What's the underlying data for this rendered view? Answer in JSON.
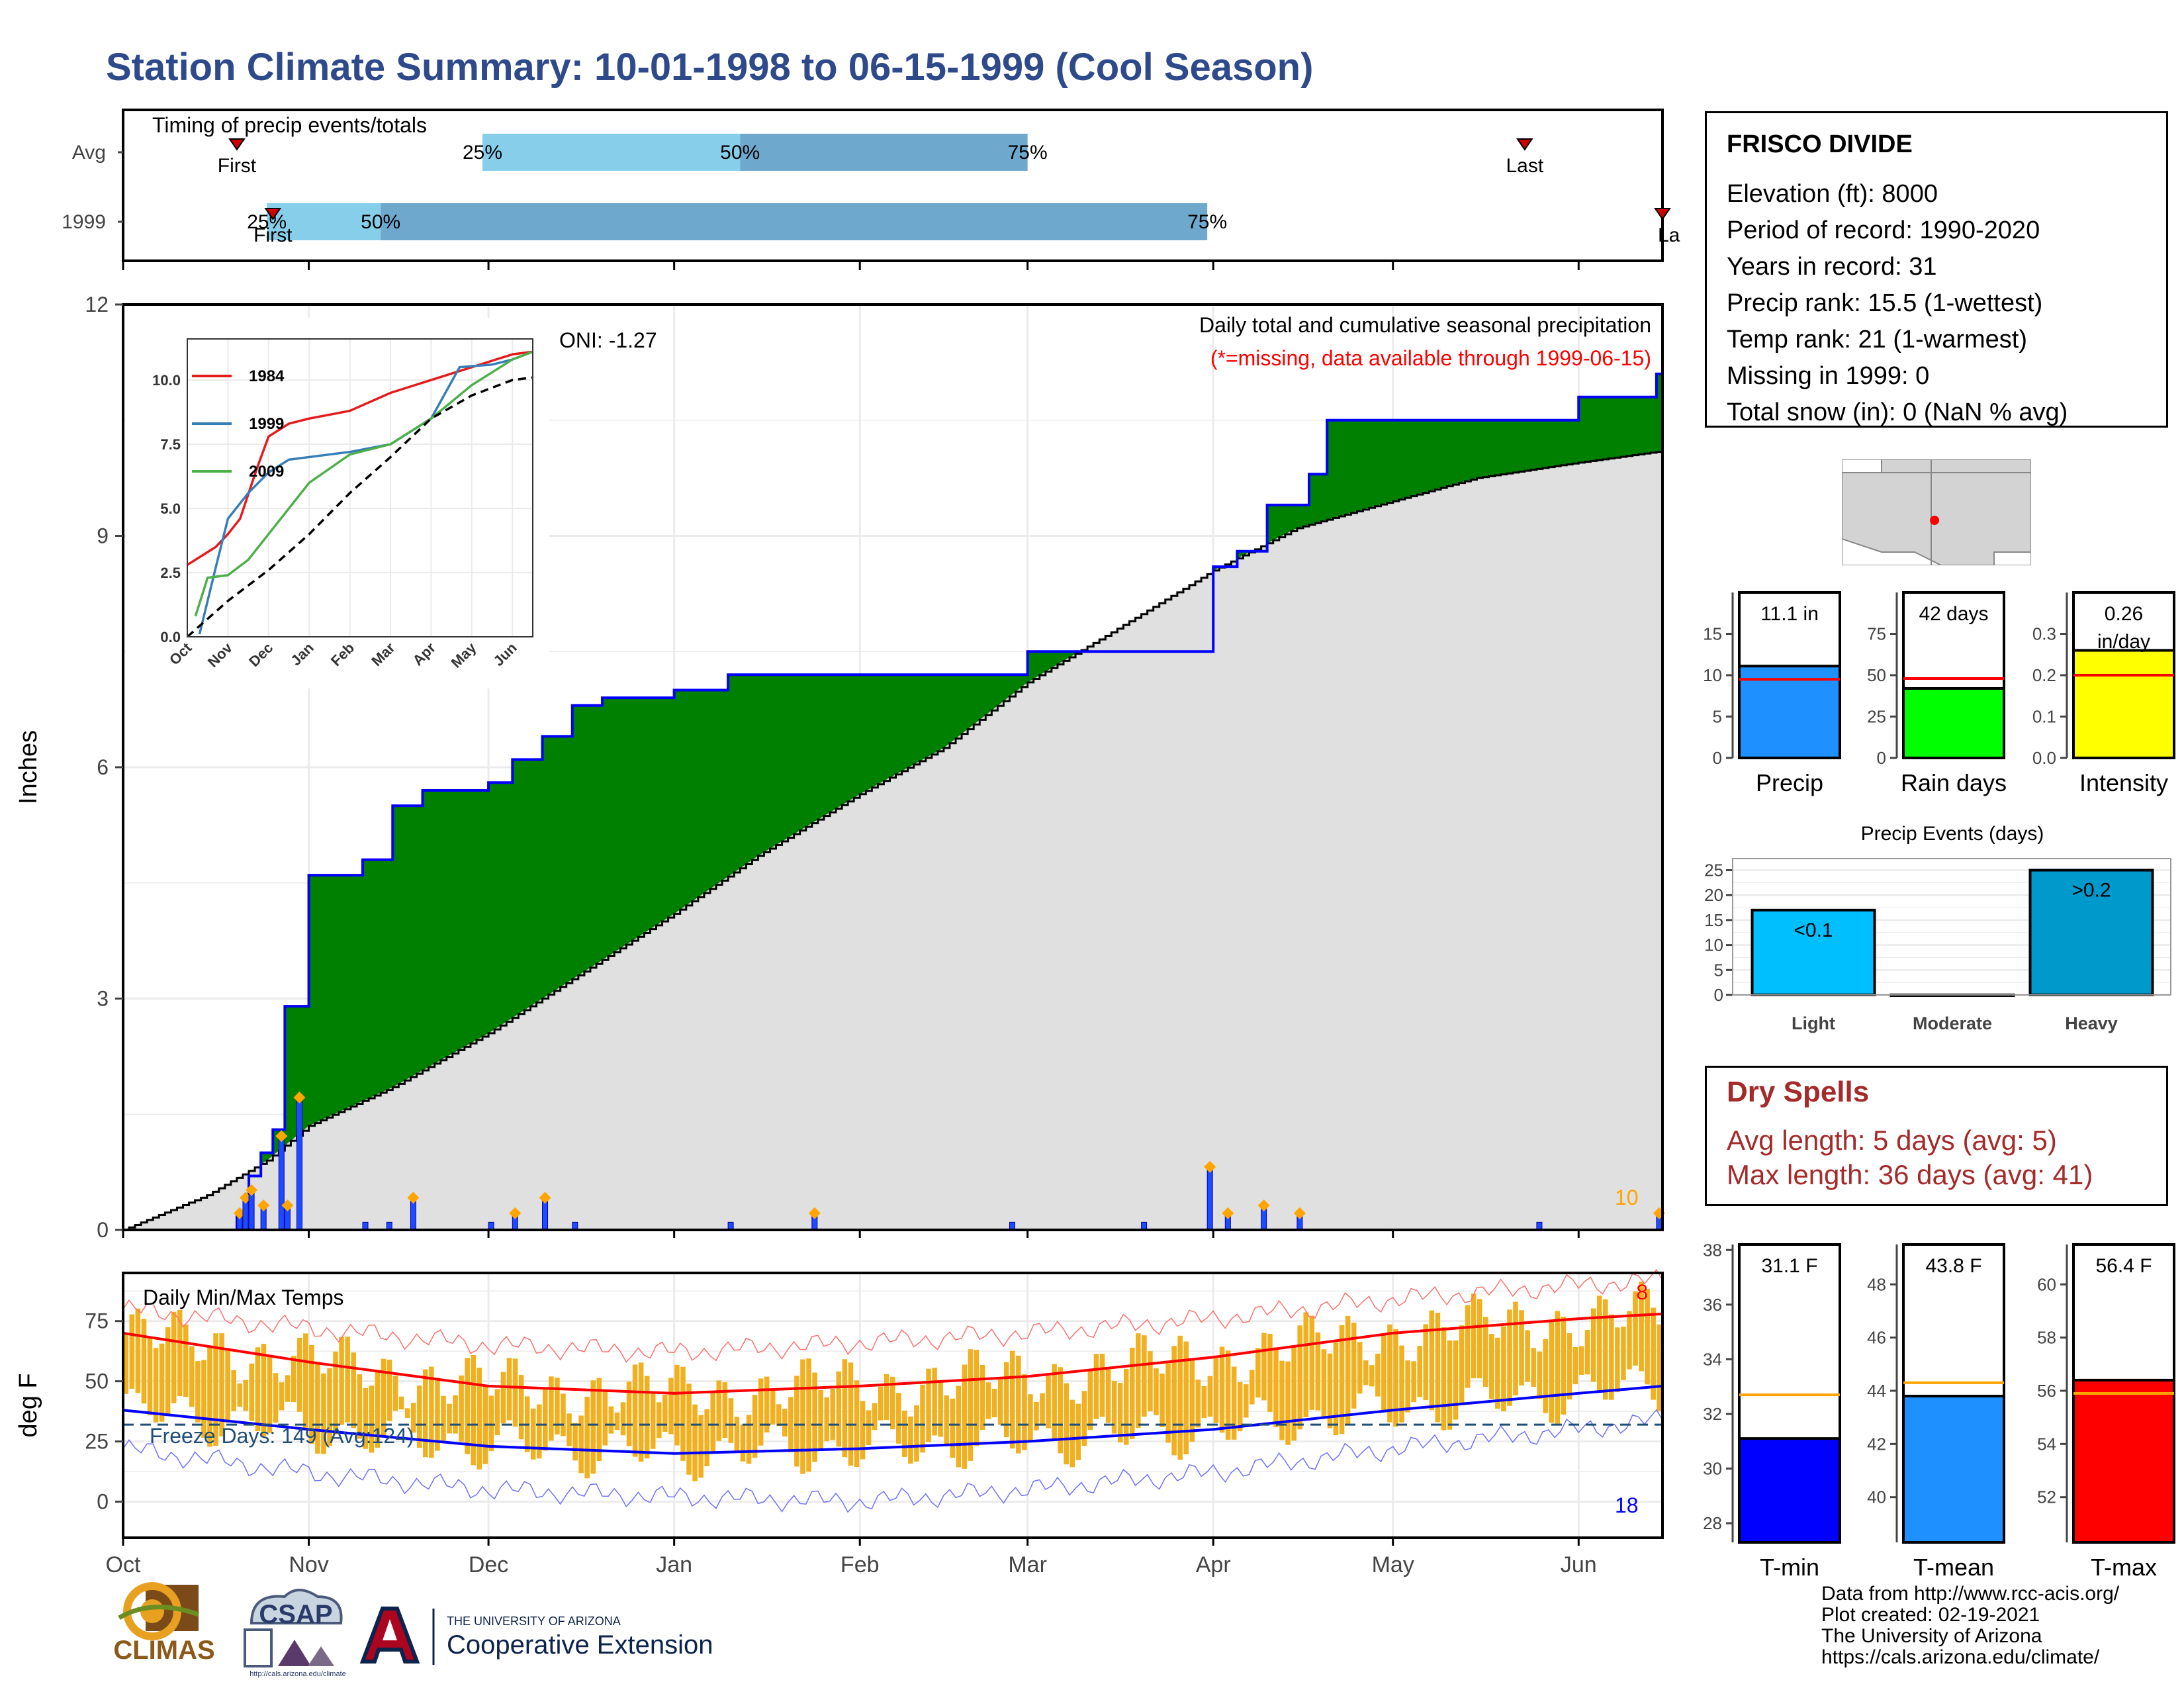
{
  "title": "Station Climate Summary: 10-01-1998 to 06-15-1999 (Cool Season)",
  "station": {
    "name": "FRISCO DIVIDE",
    "lines": [
      "Elevation (ft): 8000",
      "Period of record: 1990-2020",
      "Years in record: 31",
      "Precip rank: 15.5 (1-wettest)",
      "Temp rank: 21 (1-warmest)",
      "Missing in 1999: 0",
      "Total snow (in): 0 (NaN % avg)"
    ]
  },
  "dry_spells": {
    "heading": "Dry Spells",
    "avg": "Avg length: 5 days (avg: 5)",
    "max": "Max length: 36 days (avg: 41)"
  },
  "footer": [
    "Data from http://www.rcc-acis.org/",
    "Plot created: 02-19-2021",
    "The University of Arizona",
    "https://cals.arizona.edu/climate/"
  ],
  "logos": {
    "climas": "CLIMAS",
    "csap": "CSAP",
    "csap_url": "http://cals.arizona.edu/climate",
    "ua_small": "THE UNIVERSITY OF ARIZONA",
    "ua_big": "Cooperative Extension"
  },
  "colors": {
    "title": "#2e4a8b",
    "surplus": "#008000",
    "deficit": "#8B5A00",
    "normal": "#e0e0e0",
    "precip_line": "#0000ff",
    "q1": "#87ceeb",
    "q2": "#6fa8cd",
    "tmax": "#ff0000",
    "tmin": "#0000ff",
    "temp_bar": "#f0b020",
    "dry_spells": "#a52a2a"
  },
  "chart_data": [
    {
      "type": "bar",
      "name": "timing",
      "title": "Timing of precip events/totals",
      "categories": [
        "Avg",
        "1999"
      ],
      "x_axis": "date",
      "rows": [
        {
          "label": "Avg",
          "first": "1998-10-20",
          "last": "1999-05-23",
          "p25": "1998-11-30",
          "p50": "1999-01-12",
          "p75": "1999-03-01",
          "first_label": "First",
          "last_label": "Last"
        },
        {
          "label": "1999",
          "first": "1998-10-26",
          "last": "1999-06-15",
          "p25": "1998-10-25",
          "p50": "1998-11-13",
          "p75": "1999-03-31",
          "first_label": "First",
          "last_label": "La"
        }
      ],
      "pct_labels": [
        "25%",
        "50%",
        "75%"
      ]
    },
    {
      "type": "area",
      "name": "precip",
      "title": "Daily total and cumulative seasonal precipitation",
      "subtitle": "(*=missing, data available through 1999-06-15)",
      "ylabel": "Inches",
      "ylim": [
        0,
        12
      ],
      "yticks": [
        0,
        3,
        6,
        9,
        12
      ],
      "oni": "ONI: -1.27",
      "count_label": "10",
      "normal": [
        [
          "1998-10-01",
          0.0
        ],
        [
          "1998-10-15",
          0.45
        ],
        [
          "1998-10-25",
          0.9
        ],
        [
          "1998-11-01",
          1.35
        ],
        [
          "1998-11-15",
          1.85
        ],
        [
          "1998-12-01",
          2.55
        ],
        [
          "1998-12-15",
          3.25
        ],
        [
          "1999-01-01",
          4.1
        ],
        [
          "1999-01-15",
          4.85
        ],
        [
          "1999-02-01",
          5.65
        ],
        [
          "1999-02-15",
          6.25
        ],
        [
          "1999-03-01",
          7.1
        ],
        [
          "1999-03-15",
          7.75
        ],
        [
          "1999-04-01",
          8.55
        ],
        [
          "1999-04-15",
          9.1
        ],
        [
          "1999-05-01",
          9.45
        ],
        [
          "1999-05-15",
          9.75
        ],
        [
          "1999-06-01",
          9.95
        ],
        [
          "1999-06-15",
          10.1
        ]
      ],
      "cumulative": [
        [
          "1998-10-01",
          0.0
        ],
        [
          "1998-10-20",
          0.2
        ],
        [
          "1998-10-22",
          0.7
        ],
        [
          "1998-10-24",
          1.0
        ],
        [
          "1998-10-26",
          1.3
        ],
        [
          "1998-10-28",
          2.9
        ],
        [
          "1998-11-01",
          4.6
        ],
        [
          "1998-11-10",
          4.8
        ],
        [
          "1998-11-15",
          5.5
        ],
        [
          "1998-11-20",
          5.7
        ],
        [
          "1998-12-01",
          5.8
        ],
        [
          "1998-12-05",
          6.1
        ],
        [
          "1998-12-10",
          6.4
        ],
        [
          "1998-12-15",
          6.8
        ],
        [
          "1998-12-20",
          6.9
        ],
        [
          "1999-01-01",
          7.0
        ],
        [
          "1999-01-10",
          7.2
        ],
        [
          "1999-02-01",
          7.2
        ],
        [
          "1999-02-26",
          7.2
        ],
        [
          "1999-03-01",
          7.5
        ],
        [
          "1999-03-20",
          7.5
        ],
        [
          "1999-03-31",
          7.5
        ],
        [
          "1999-04-01",
          8.6
        ],
        [
          "1999-04-05",
          8.8
        ],
        [
          "1999-04-10",
          9.4
        ],
        [
          "1999-04-17",
          9.8
        ],
        [
          "1999-04-20",
          10.5
        ],
        [
          "1999-05-01",
          10.5
        ],
        [
          "1999-05-15",
          10.5
        ],
        [
          "1999-06-01",
          10.8
        ],
        [
          "1999-06-10",
          10.8
        ],
        [
          "1999-06-14",
          11.1
        ]
      ],
      "daily": [
        [
          "1998-10-20",
          0.2
        ],
        [
          "1998-10-21",
          0.4
        ],
        [
          "1998-10-22",
          0.5
        ],
        [
          "1998-10-24",
          0.3
        ],
        [
          "1998-10-27",
          1.2
        ],
        [
          "1998-10-28",
          0.3
        ],
        [
          "1998-10-30",
          1.7
        ],
        [
          "1998-11-10",
          0.1
        ],
        [
          "1998-11-14",
          0.1
        ],
        [
          "1998-11-18",
          0.4
        ],
        [
          "1998-12-01",
          0.1
        ],
        [
          "1998-12-05",
          0.2
        ],
        [
          "1998-12-10",
          0.4
        ],
        [
          "1998-12-15",
          0.1
        ],
        [
          "1999-01-10",
          0.1
        ],
        [
          "1999-01-24",
          0.2
        ],
        [
          "1999-02-26",
          0.1
        ],
        [
          "1999-03-20",
          0.1
        ],
        [
          "1999-03-31",
          0.8
        ],
        [
          "1999-04-03",
          0.2
        ],
        [
          "1999-04-09",
          0.3
        ],
        [
          "1999-04-15",
          0.2
        ],
        [
          "1999-05-25",
          0.1
        ],
        [
          "1999-06-14",
          0.2
        ]
      ]
    },
    {
      "type": "line",
      "name": "inset_cumulative",
      "categories": [
        "Oct",
        "Nov",
        "Dec",
        "Jan",
        "Feb",
        "Mar",
        "Apr",
        "May",
        "Jun"
      ],
      "ylim": [
        0,
        11.6
      ],
      "yticks": [
        "0.0",
        "2.5",
        "5.0",
        "7.5",
        "10.0"
      ],
      "series": [
        {
          "name": "1984",
          "color": "#e41a1c",
          "values": [
            [
              0,
              2.8
            ],
            [
              0.3,
              3.1
            ],
            [
              0.7,
              3.5
            ],
            [
              1.0,
              4.0
            ],
            [
              1.3,
              4.6
            ],
            [
              1.7,
              6.5
            ],
            [
              2.0,
              7.8
            ],
            [
              2.5,
              8.3
            ],
            [
              3.0,
              8.5
            ],
            [
              4.0,
              8.8
            ],
            [
              5.0,
              9.5
            ],
            [
              6.0,
              10.0
            ],
            [
              7.0,
              10.5
            ],
            [
              8.0,
              11.0
            ],
            [
              8.5,
              11.1
            ]
          ]
        },
        {
          "name": "1999",
          "color": "#377eb8",
          "values": [
            [
              0.3,
              0.1
            ],
            [
              0.7,
              2.7
            ],
            [
              1.0,
              4.6
            ],
            [
              1.5,
              5.6
            ],
            [
              2.0,
              6.4
            ],
            [
              2.5,
              6.9
            ],
            [
              3.0,
              7.0
            ],
            [
              4.0,
              7.2
            ],
            [
              5.0,
              7.5
            ],
            [
              6.0,
              8.5
            ],
            [
              6.7,
              10.5
            ],
            [
              7.5,
              10.6
            ],
            [
              8.0,
              10.8
            ],
            [
              8.5,
              11.1
            ]
          ]
        },
        {
          "name": "2009",
          "color": "#4daf4a",
          "values": [
            [
              0.2,
              0.8
            ],
            [
              0.5,
              2.3
            ],
            [
              1.0,
              2.4
            ],
            [
              1.5,
              3.0
            ],
            [
              2.0,
              4.0
            ],
            [
              2.5,
              5.0
            ],
            [
              3.0,
              6.0
            ],
            [
              4.0,
              7.1
            ],
            [
              5.0,
              7.5
            ],
            [
              6.0,
              8.5
            ],
            [
              7.0,
              9.8
            ],
            [
              8.0,
              10.8
            ],
            [
              8.5,
              11.1
            ]
          ]
        },
        {
          "name": "",
          "color": "#000000",
          "dashed": true,
          "values": [
            [
              0,
              0
            ],
            [
              1,
              1.4
            ],
            [
              2,
              2.6
            ],
            [
              3,
              4.0
            ],
            [
              4,
              5.6
            ],
            [
              5,
              7.0
            ],
            [
              6,
              8.5
            ],
            [
              7,
              9.4
            ],
            [
              8,
              10.0
            ],
            [
              8.5,
              10.1
            ]
          ]
        }
      ]
    },
    {
      "type": "bar",
      "name": "temps",
      "title": "Daily Min/Max Temps",
      "ylabel": "deg F",
      "ylim": [
        -15,
        95
      ],
      "yticks": [
        0,
        25,
        50,
        75
      ],
      "freeze_label": "Freeze Days: 149 (Avg:124)",
      "freeze_line": 32,
      "top_count": "8",
      "bottom_count": "18",
      "x_labels": [
        "Oct",
        "Nov",
        "Dec",
        "Jan",
        "Feb",
        "Mar",
        "Apr",
        "May",
        "Jun"
      ],
      "avg_max": [
        [
          "1998-10-01",
          70
        ],
        [
          "1998-11-01",
          58
        ],
        [
          "1998-12-01",
          48
        ],
        [
          "1999-01-01",
          45
        ],
        [
          "1999-02-01",
          48
        ],
        [
          "1999-03-01",
          52
        ],
        [
          "1999-04-01",
          60
        ],
        [
          "1999-05-01",
          70
        ],
        [
          "1999-06-01",
          76
        ],
        [
          "1999-06-15",
          78
        ]
      ],
      "avg_min": [
        [
          "1998-10-01",
          38
        ],
        [
          "1998-11-01",
          30
        ],
        [
          "1998-12-01",
          23
        ],
        [
          "1999-01-01",
          20
        ],
        [
          "1999-02-01",
          22
        ],
        [
          "1999-03-01",
          25
        ],
        [
          "1999-04-01",
          30
        ],
        [
          "1999-05-01",
          38
        ],
        [
          "1999-06-01",
          45
        ],
        [
          "1999-06-15",
          48
        ]
      ],
      "record_max": [
        [
          "1998-10-01",
          80
        ],
        [
          "1998-11-01",
          72
        ],
        [
          "1998-12-01",
          65
        ],
        [
          "1999-01-01",
          62
        ],
        [
          "1999-02-01",
          66
        ],
        [
          "1999-03-01",
          70
        ],
        [
          "1999-04-01",
          76
        ],
        [
          "1999-05-01",
          84
        ],
        [
          "1999-06-01",
          90
        ],
        [
          "1999-06-15",
          92
        ]
      ],
      "record_min": [
        [
          "1998-10-01",
          22
        ],
        [
          "1998-11-01",
          12
        ],
        [
          "1998-12-01",
          5
        ],
        [
          "1999-01-01",
          2
        ],
        [
          "1999-02-01",
          0
        ],
        [
          "1999-03-01",
          5
        ],
        [
          "1999-04-01",
          12
        ],
        [
          "1999-05-01",
          22
        ],
        [
          "1999-06-01",
          30
        ],
        [
          "1999-06-15",
          34
        ]
      ]
    },
    {
      "type": "bar",
      "name": "precip_stats",
      "categories": [
        "Precip",
        "Rain days",
        "Intensity"
      ],
      "values": [
        11.1,
        42,
        0.26
      ],
      "value_labels": [
        "11.1 in",
        "42 days",
        "0.26 in/day"
      ],
      "averages": [
        9.5,
        48,
        0.2
      ],
      "ylims": [
        [
          0,
          20
        ],
        [
          0,
          100
        ],
        [
          0,
          0.4
        ]
      ],
      "yticks": [
        [
          "0",
          "5",
          "10",
          "15"
        ],
        [
          "0",
          "25",
          "50",
          "75"
        ],
        [
          "0.0",
          "0.1",
          "0.2",
          "0.3"
        ]
      ],
      "colors": [
        "#1e90ff",
        "#00ff00",
        "#ffff00"
      ]
    },
    {
      "type": "bar",
      "name": "precip_events",
      "title": "Precip Events (days)",
      "categories": [
        "Light",
        "Moderate",
        "Heavy"
      ],
      "values": [
        17,
        0,
        25
      ],
      "bar_labels": [
        "<0.1",
        "",
        ">0.2"
      ],
      "ylim": [
        0,
        26
      ],
      "yticks": [
        "0",
        "5",
        "10",
        "15",
        "20",
        "25"
      ]
    },
    {
      "type": "bar",
      "name": "temp_stats",
      "categories": [
        "T-min",
        "T-mean",
        "T-max"
      ],
      "values": [
        31.1,
        43.8,
        56.4
      ],
      "value_labels": [
        "31.1 F",
        "43.8 F",
        "56.4 F"
      ],
      "averages": [
        32.7,
        44.3,
        55.9
      ],
      "ylims": [
        [
          27.3,
          38.2
        ],
        [
          38.3,
          49.5
        ],
        [
          50.3,
          61.5
        ]
      ],
      "yticks": [
        [
          "28",
          "30",
          "32",
          "34",
          "36",
          "38"
        ],
        [
          "40",
          "42",
          "44",
          "46",
          "48"
        ],
        [
          "52",
          "54",
          "56",
          "58",
          "60"
        ]
      ],
      "colors": [
        "#0000ff",
        "#1e90ff",
        "#ff0000"
      ]
    }
  ]
}
